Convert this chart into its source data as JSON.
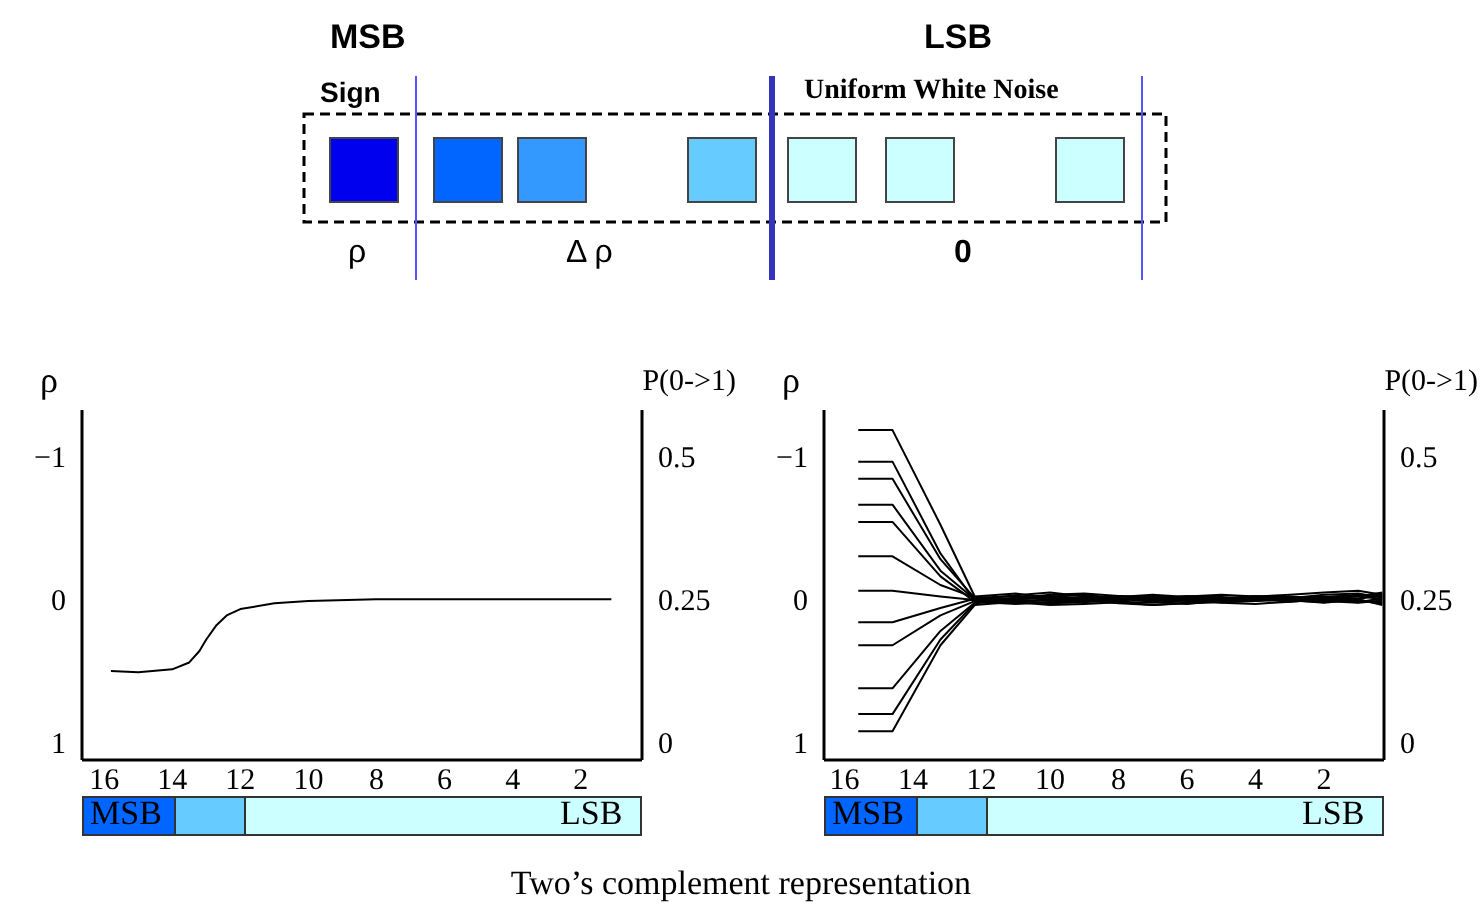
{
  "chart_data": [
    {
      "type": "other",
      "annotations": [
        "MSB",
        "LSB",
        "Sign",
        "Uniform White Noise",
        "ρ",
        "Δ ρ",
        "0",
        "Two’s complement representation"
      ]
    },
    {
      "type": "line",
      "ylabel": "ρ",
      "y2label": "P(0->1)",
      "annotations": [
        "MSB",
        "LSB"
      ],
      "xlim": [
        16.65,
        0.2
      ],
      "xticks": [
        16,
        14,
        12,
        10,
        8,
        6,
        4,
        2
      ],
      "ylim": [
        1.12,
        -1.32
      ],
      "yticks": [
        -1,
        0,
        1
      ],
      "y2lim": [
        -0.03,
        0.58
      ],
      "y2ticks": [
        0,
        0.25,
        0.5
      ],
      "marker": "none",
      "x": [
        15.8,
        15,
        14,
        13.5,
        13.2,
        13,
        12.7,
        12.4,
        12,
        11,
        10,
        8,
        6,
        4,
        2,
        1.1
      ],
      "series": [
        {
          "color": "#000000",
          "axis": "y2",
          "values": [
            0.125,
            0.123,
            0.128,
            0.14,
            0.16,
            0.18,
            0.205,
            0.222,
            0.233,
            0.243,
            0.247,
            0.25,
            0.25,
            0.25,
            0.25,
            0.25
          ]
        }
      ]
    },
    {
      "type": "line",
      "ylabel": "ρ",
      "y2label": "P(0->1)",
      "annotations": [
        "MSB",
        "LSB"
      ],
      "xlim": [
        16.6,
        0.25
      ],
      "xticks": [
        16,
        14,
        12,
        10,
        8,
        6,
        4,
        2
      ],
      "ylim": [
        1.12,
        -1.32
      ],
      "yticks": [
        -1,
        0,
        1
      ],
      "y2lim": [
        -0.03,
        0.58
      ],
      "y2ticks": [
        0,
        0.25,
        0.5
      ],
      "marker": "none",
      "x": [
        15.6,
        14.6,
        13.2,
        12.2,
        11,
        10,
        9,
        8,
        7,
        6,
        5,
        4,
        3,
        2,
        1,
        0.3
      ],
      "series": [
        {
          "color": "#000000",
          "axis": "y2",
          "values": [
            0.545,
            0.545,
            0.38,
            0.255,
            0.26,
            0.252,
            0.248,
            0.25,
            0.255,
            0.252,
            0.25,
            0.255,
            0.258,
            0.262,
            0.265,
            0.258
          ]
        },
        {
          "color": "#000000",
          "axis": "y2",
          "values": [
            0.49,
            0.49,
            0.33,
            0.248,
            0.245,
            0.24,
            0.242,
            0.245,
            0.24,
            0.243,
            0.245,
            0.248,
            0.25,
            0.252,
            0.255,
            0.262
          ]
        },
        {
          "color": "#000000",
          "axis": "y2",
          "values": [
            0.46,
            0.46,
            0.32,
            0.252,
            0.25,
            0.255,
            0.258,
            0.252,
            0.248,
            0.25,
            0.253,
            0.25,
            0.248,
            0.245,
            0.25,
            0.24
          ]
        },
        {
          "color": "#000000",
          "axis": "y2",
          "values": [
            0.415,
            0.415,
            0.3,
            0.25,
            0.257,
            0.262,
            0.255,
            0.25,
            0.252,
            0.256,
            0.254,
            0.25,
            0.246,
            0.25,
            0.256,
            0.25
          ]
        },
        {
          "color": "#000000",
          "axis": "y2",
          "values": [
            0.385,
            0.385,
            0.29,
            0.246,
            0.242,
            0.245,
            0.248,
            0.243,
            0.24,
            0.244,
            0.247,
            0.25,
            0.252,
            0.248,
            0.245,
            0.252
          ]
        },
        {
          "color": "#000000",
          "axis": "y2",
          "values": [
            0.325,
            0.325,
            0.275,
            0.253,
            0.255,
            0.25,
            0.246,
            0.248,
            0.252,
            0.255,
            0.258,
            0.255,
            0.252,
            0.255,
            0.248,
            0.245
          ]
        },
        {
          "color": "#000000",
          "axis": "y2",
          "values": [
            0.265,
            0.265,
            0.255,
            0.249,
            0.252,
            0.258,
            0.26,
            0.256,
            0.25,
            0.247,
            0.245,
            0.247,
            0.25,
            0.254,
            0.258,
            0.255
          ]
        },
        {
          "color": "#000000",
          "axis": "y2",
          "values": [
            0.21,
            0.21,
            0.235,
            0.251,
            0.248,
            0.243,
            0.245,
            0.25,
            0.253,
            0.25,
            0.244,
            0.242,
            0.246,
            0.25,
            0.252,
            0.256
          ]
        },
        {
          "color": "#000000",
          "axis": "y2",
          "values": [
            0.17,
            0.17,
            0.222,
            0.247,
            0.25,
            0.253,
            0.25,
            0.246,
            0.244,
            0.248,
            0.252,
            0.256,
            0.253,
            0.247,
            0.244,
            0.248
          ]
        },
        {
          "color": "#000000",
          "axis": "y2",
          "values": [
            0.095,
            0.095,
            0.195,
            0.244,
            0.253,
            0.256,
            0.252,
            0.254,
            0.258,
            0.254,
            0.25,
            0.248,
            0.252,
            0.258,
            0.26,
            0.253
          ]
        },
        {
          "color": "#000000",
          "axis": "y2",
          "values": [
            0.05,
            0.05,
            0.18,
            0.243,
            0.249,
            0.247,
            0.252,
            0.256,
            0.254,
            0.249,
            0.247,
            0.252,
            0.255,
            0.251,
            0.247,
            0.243
          ]
        },
        {
          "color": "#000000",
          "axis": "y2",
          "values": [
            0.02,
            0.02,
            0.17,
            0.24,
            0.246,
            0.25,
            0.254,
            0.251,
            0.246,
            0.242,
            0.248,
            0.253,
            0.249,
            0.244,
            0.25,
            0.26
          ]
        }
      ]
    }
  ]
}
